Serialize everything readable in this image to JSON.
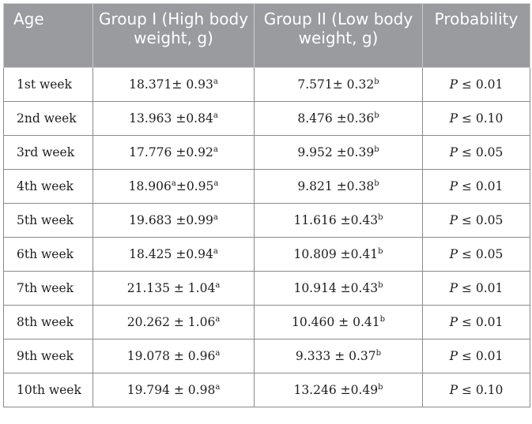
{
  "table": {
    "headers": [
      "Age",
      "Group I (High body weight, g)",
      "Group II (Low body weight, g)",
      "Probability"
    ],
    "rows": [
      {
        "age": "1st week",
        "g1": "18.371± 0.93",
        "g1_sup": "a",
        "g2": "7.571± 0.32",
        "g2_sup": "b",
        "p_sym": "P",
        "p_rest": " ≤ 0.01"
      },
      {
        "age": "2nd week",
        "g1": "13.963 ±0.84",
        "g1_sup": "a",
        "g2": "8.476 ±0.36",
        "g2_sup": "b",
        "p_sym": "P",
        "p_rest": " ≤ 0.10"
      },
      {
        "age": "3rd week",
        "g1": "17.776 ±0.92",
        "g1_sup": "a",
        "g2": "9.952 ±0.39",
        "g2_sup": "b",
        "p_sym": "P",
        "p_rest": " ≤ 0.05"
      },
      {
        "age": "4th week",
        "g1": "18.906",
        "g1_mid_sup": "a",
        "g1_tail": "±0.95",
        "g1_sup": "a",
        "g2": "9.821 ±0.38",
        "g2_sup": "b",
        "p_sym": "P",
        "p_rest": " ≤ 0.01"
      },
      {
        "age": "5th week",
        "g1": "19.683 ±0.99",
        "g1_sup": "a",
        "g2": "11.616 ±0.43",
        "g2_sup": "b",
        "p_sym": "P",
        "p_rest": " ≤ 0.05"
      },
      {
        "age": "6th week",
        "g1": "18.425 ±0.94",
        "g1_sup": "a",
        "g2": "10.809 ±0.41",
        "g2_sup": "b",
        "p_sym": "P",
        "p_rest": " ≤ 0.05"
      },
      {
        "age": "7th week",
        "g1": "21.135 ± 1.04",
        "g1_sup": "a",
        "g2": "10.914 ±0.43",
        "g2_sup": "b",
        "p_sym": "P",
        "p_rest": " ≤ 0.01"
      },
      {
        "age": "8th week",
        "g1": "20.262 ± 1.06",
        "g1_sup": "a",
        "g2": "10.460 ± 0.41",
        "g2_sup": "b",
        "p_sym": "P",
        "p_rest": " ≤ 0.01"
      },
      {
        "age": "9th week",
        "g1": "19.078 ± 0.96",
        "g1_sup": "a",
        "g2": "9.333 ± 0.37",
        "g2_sup": "b",
        "p_sym": "P",
        "p_rest": " ≤ 0.01"
      },
      {
        "age": "10th week",
        "g1": "19.794 ± 0.98",
        "g1_sup": "a",
        "g2": "13.246 ±0.49",
        "g2_sup": "b",
        "p_sym": "P",
        "p_rest": " ≤ 0.10"
      }
    ]
  },
  "colors": {
    "header_bg": "#999b9f",
    "header_text": "#ffffff",
    "grid": "#8a8a8a"
  }
}
